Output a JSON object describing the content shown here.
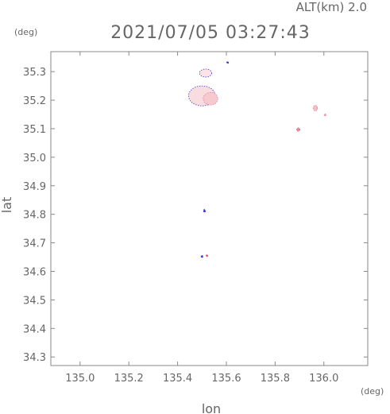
{
  "header": {
    "altitude": "ALT(km) 2.0",
    "timestamp": "2021/07/05 03:27:43"
  },
  "chart_data": {
    "type": "heatmap",
    "title": "2021/07/05 03:27:43",
    "xlabel": "lon",
    "ylabel": "lat",
    "x_unit": "(deg)",
    "y_unit": "(deg)",
    "xlim": [
      134.88,
      136.18
    ],
    "ylim": [
      34.27,
      35.37
    ],
    "xticks": [
      135.0,
      135.2,
      135.4,
      135.6,
      135.8,
      136.0
    ],
    "xtick_labels": [
      "135.0",
      "135.2",
      "135.4",
      "135.6",
      "135.8",
      "136.0"
    ],
    "yticks": [
      34.3,
      34.4,
      34.5,
      34.6,
      34.7,
      34.8,
      34.9,
      35.0,
      35.1,
      35.2,
      35.3
    ],
    "ytick_labels": [
      "34.3",
      "34.4",
      "34.5",
      "34.6",
      "34.7",
      "34.8",
      "34.9",
      "35.0",
      "35.1",
      "35.2",
      "35.3"
    ],
    "grid": false,
    "points": [
      {
        "lon": 135.5,
        "lat": 35.215,
        "rlon": 0.055,
        "rlat": 0.035,
        "color": "#f9dcdf",
        "edge": "#3b3bd6"
      },
      {
        "lon": 135.535,
        "lat": 35.205,
        "rlon": 0.03,
        "rlat": 0.022,
        "color": "#f6c9cf",
        "edge": "#e07c8f"
      },
      {
        "lon": 135.515,
        "lat": 35.295,
        "rlon": 0.025,
        "rlat": 0.014,
        "color": "#fbe3e6",
        "edge": "#3b3bd6"
      },
      {
        "lon": 135.605,
        "lat": 35.332,
        "rlon": 0.003,
        "rlat": 0.003,
        "color": "#3b3bd6",
        "edge": "#3b3bd6"
      },
      {
        "lon": 135.965,
        "lat": 35.172,
        "rlon": 0.009,
        "rlat": 0.01,
        "color": "#f3bcc6",
        "edge": "#e07c8f"
      },
      {
        "lon": 135.895,
        "lat": 35.097,
        "rlon": 0.007,
        "rlat": 0.006,
        "color": "#e8899c",
        "edge": "#d86a80"
      },
      {
        "lon": 136.005,
        "lat": 35.148,
        "rlon": 0.004,
        "rlat": 0.004,
        "color": "#ec9aab",
        "edge": "#ec9aab"
      },
      {
        "lon": 135.51,
        "lat": 34.812,
        "rlon": 0.004,
        "rlat": 0.005,
        "color": "#3b3bd6",
        "edge": "#3b3bd6"
      },
      {
        "lon": 135.5,
        "lat": 34.652,
        "rlon": 0.003,
        "rlat": 0.004,
        "color": "#3b3bd6",
        "edge": "#3b3bd6"
      },
      {
        "lon": 135.52,
        "lat": 34.655,
        "rlon": 0.003,
        "rlat": 0.003,
        "color": "#e0566c",
        "edge": "#e0566c"
      }
    ]
  }
}
